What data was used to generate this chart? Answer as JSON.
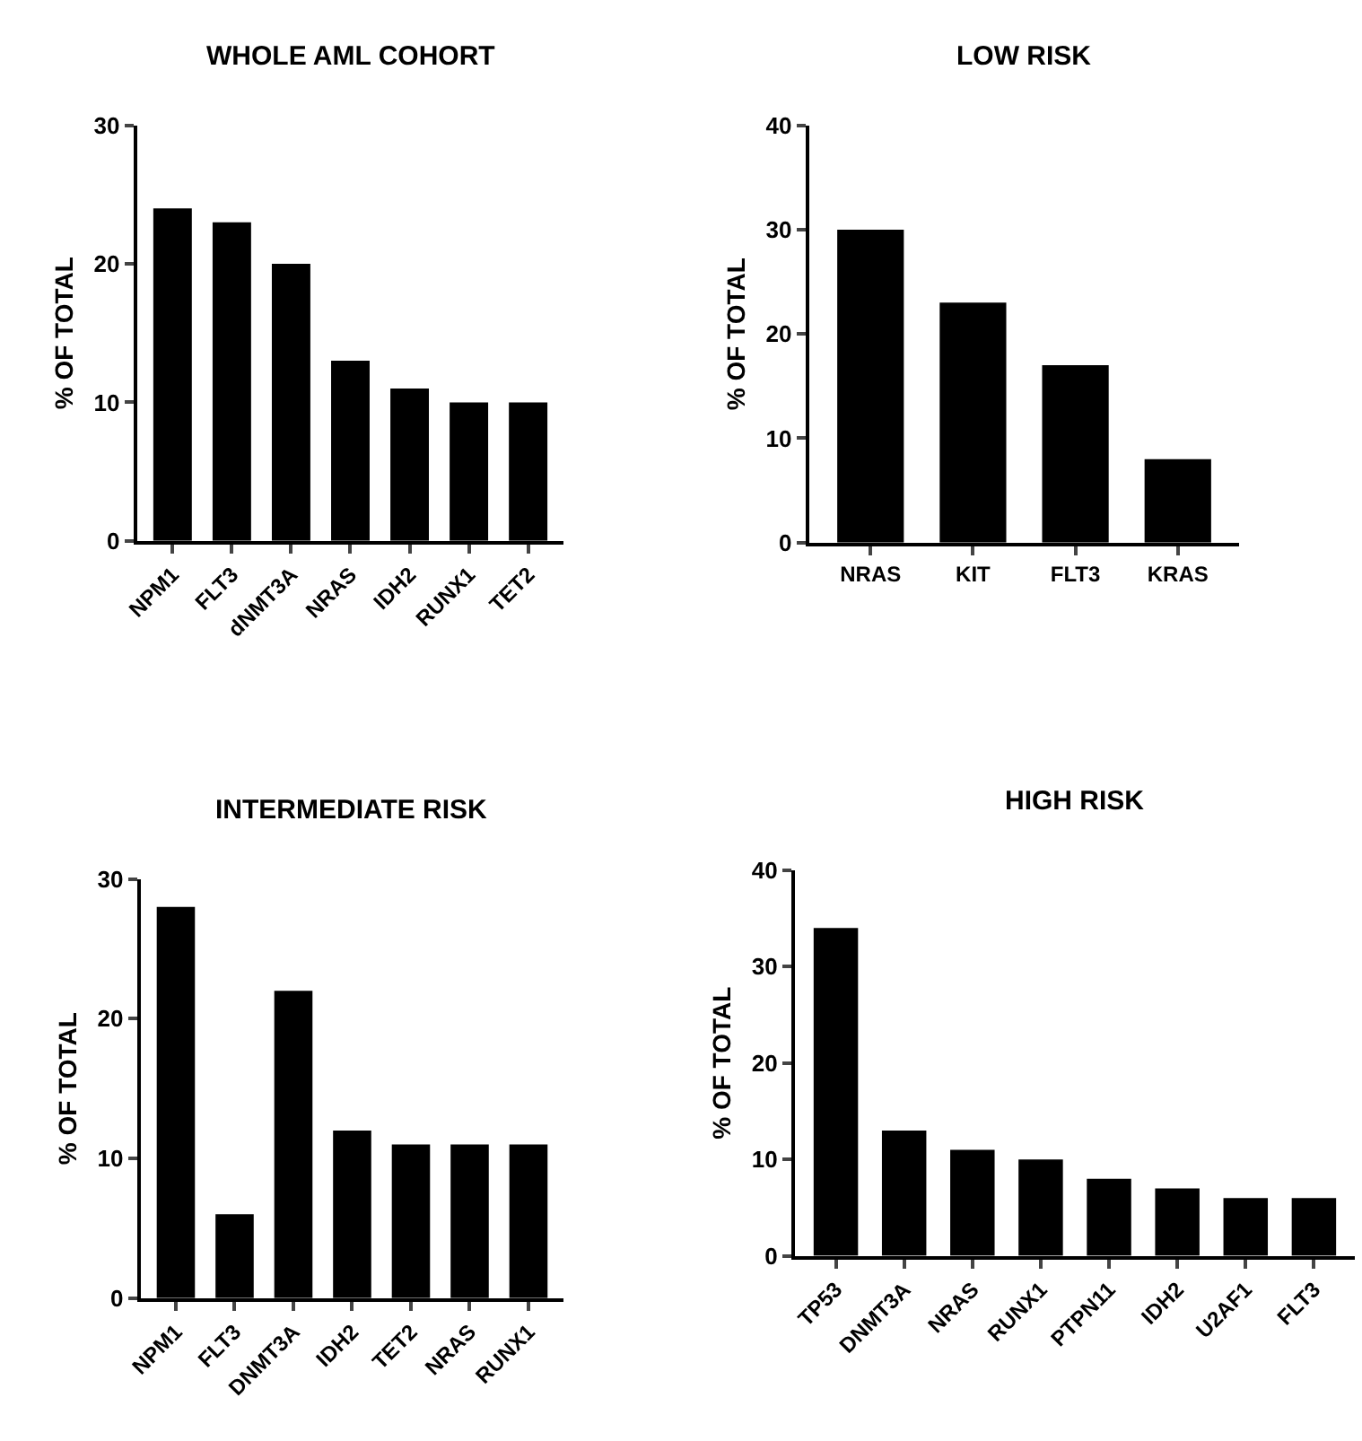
{
  "chart_data": [
    {
      "type": "bar",
      "title": "WHOLE AML COHORT",
      "ylabel": "% OF TOTAL",
      "categories": [
        "NPM1",
        "FLT3",
        "dNMT3A",
        "NRAS",
        "IDH2",
        "RUNX1",
        "TET2"
      ],
      "values": [
        24,
        23,
        20,
        13,
        11,
        10,
        10
      ],
      "color": "#000000",
      "ylim": [
        0,
        30
      ],
      "yticks": [
        0,
        10,
        20,
        30
      ]
    },
    {
      "type": "bar",
      "title": "LOW RISK",
      "ylabel": "% OF TOTAL",
      "categories": [
        "NRAS",
        "KIT",
        "FLT3",
        "KRAS"
      ],
      "values": [
        30,
        23,
        17,
        8
      ],
      "color": "#000000",
      "ylim": [
        0,
        40
      ],
      "yticks": [
        0,
        10,
        20,
        30,
        40
      ]
    },
    {
      "type": "bar",
      "title": "INTERMEDIATE RISK",
      "ylabel": "% OF TOTAL",
      "categories": [
        "NPM1",
        "FLT3",
        "DNMT3A",
        "IDH2",
        "TET2",
        "NRAS",
        "RUNX1"
      ],
      "values": [
        28,
        6,
        22,
        12,
        11,
        11,
        11
      ],
      "color": "#000000",
      "ylim": [
        0,
        30
      ],
      "yticks": [
        0,
        10,
        20,
        30
      ]
    },
    {
      "type": "bar",
      "title": "HIGH RISK",
      "ylabel": "% OF TOTAL",
      "categories": [
        "TP53",
        "DNMT3A",
        "NRAS",
        "RUNX1",
        "PTPN11",
        "IDH2",
        "U2AF1",
        "FLT3"
      ],
      "values": [
        34,
        13,
        11,
        10,
        8,
        7,
        6,
        6
      ],
      "color": "#000000",
      "ylim": [
        0,
        40
      ],
      "yticks": [
        0,
        10,
        20,
        30,
        40
      ]
    }
  ]
}
